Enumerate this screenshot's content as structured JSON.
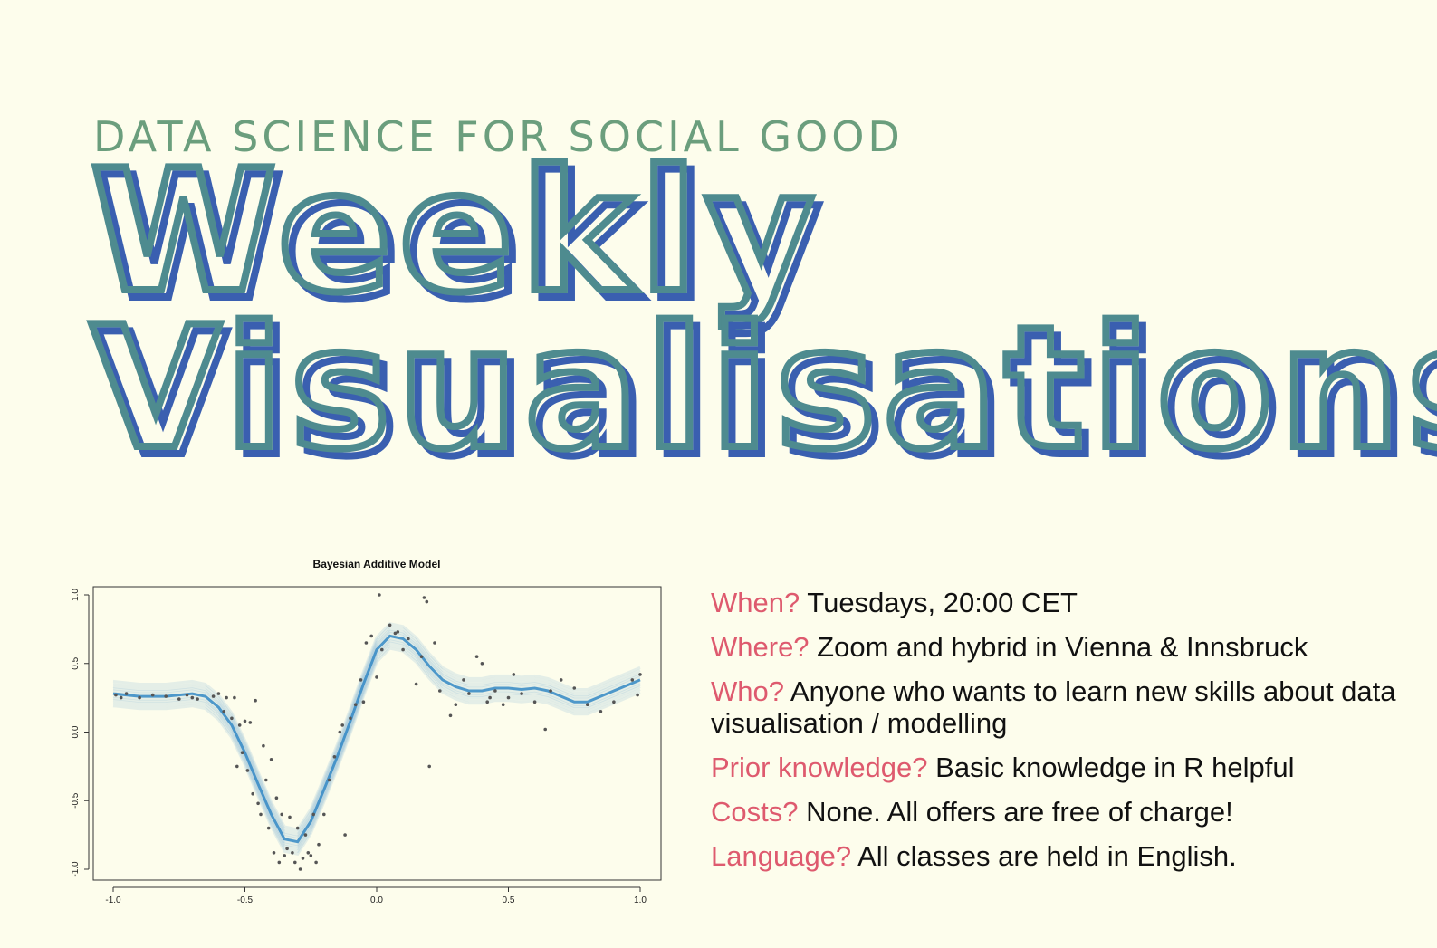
{
  "header": {
    "kicker": "DATA SCIENCE FOR SOCIAL GOOD",
    "title_line1": "Weekly",
    "title_line2": "Visualisations"
  },
  "colors": {
    "background": "#fdfdec",
    "kicker": "#6b9e7d",
    "title_outline_teal": "#4e8b8f",
    "title_outline_blue": "#3a5fb0",
    "question": "#de5a6e",
    "answer": "#111111",
    "curve": "#2f86c4"
  },
  "info": [
    {
      "question": "When?",
      "answer": "Tuesdays, 20:00 CET"
    },
    {
      "question": "Where?",
      "answer": "Zoom and hybrid in Vienna & Innsbruck"
    },
    {
      "question": "Who?",
      "answer": "Anyone who wants to learn new skills about data visualisation / modelling"
    },
    {
      "question": "Prior knowledge?",
      "answer": "Basic knowledge in R helpful"
    },
    {
      "question": "Costs?",
      "answer": "None. All offers are free of charge!"
    },
    {
      "question": "Language?",
      "answer": "All classes are held in English."
    }
  ],
  "chart_data": {
    "type": "scatter",
    "title": "Bayesian Additive Model",
    "xlabel": "",
    "ylabel": "",
    "xlim": [
      -1.0,
      1.0
    ],
    "ylim": [
      -1.0,
      1.0
    ],
    "xticks": [
      "-1.0",
      "-0.5",
      "0.0",
      "0.5",
      "1.0"
    ],
    "yticks": [
      "-1.0",
      "-0.5",
      "0.0",
      "0.5",
      "1.0"
    ],
    "grid": false,
    "series": [
      {
        "type": "line",
        "x": [
          -1.0,
          -0.9,
          -0.8,
          -0.7,
          -0.65,
          -0.6,
          -0.55,
          -0.5,
          -0.45,
          -0.4,
          -0.35,
          -0.3,
          -0.25,
          -0.2,
          -0.15,
          -0.1,
          -0.05,
          0.0,
          0.05,
          0.1,
          0.15,
          0.2,
          0.25,
          0.3,
          0.35,
          0.4,
          0.45,
          0.5,
          0.55,
          0.6,
          0.65,
          0.7,
          0.75,
          0.8,
          0.85,
          0.9,
          0.95,
          1.0
        ],
        "y": [
          0.28,
          0.26,
          0.26,
          0.28,
          0.26,
          0.18,
          0.05,
          -0.15,
          -0.38,
          -0.6,
          -0.78,
          -0.8,
          -0.65,
          -0.42,
          -0.18,
          0.08,
          0.35,
          0.6,
          0.7,
          0.68,
          0.6,
          0.48,
          0.38,
          0.33,
          0.3,
          0.3,
          0.32,
          0.32,
          0.31,
          0.32,
          0.3,
          0.26,
          0.22,
          0.22,
          0.26,
          0.3,
          0.34,
          0.38
        ]
      },
      {
        "type": "scatter",
        "x": [
          -0.99,
          -0.97,
          -0.95,
          -0.9,
          -0.85,
          -0.8,
          -0.75,
          -0.72,
          -0.7,
          -0.68,
          -0.62,
          -0.6,
          -0.58,
          -0.57,
          -0.55,
          -0.54,
          -0.53,
          -0.52,
          -0.51,
          -0.5,
          -0.49,
          -0.48,
          -0.47,
          -0.46,
          -0.45,
          -0.44,
          -0.43,
          -0.42,
          -0.41,
          -0.4,
          -0.39,
          -0.38,
          -0.37,
          -0.36,
          -0.35,
          -0.34,
          -0.33,
          -0.32,
          -0.31,
          -0.3,
          -0.29,
          -0.28,
          -0.27,
          -0.26,
          -0.25,
          -0.24,
          -0.23,
          -0.22,
          -0.2,
          -0.18,
          -0.16,
          -0.14,
          -0.13,
          -0.12,
          -0.1,
          -0.08,
          -0.06,
          -0.05,
          -0.04,
          -0.02,
          0.0,
          0.01,
          0.02,
          0.05,
          0.07,
          0.08,
          0.1,
          0.12,
          0.15,
          0.17,
          0.18,
          0.19,
          0.2,
          0.22,
          0.24,
          0.28,
          0.3,
          0.33,
          0.35,
          0.38,
          0.4,
          0.42,
          0.43,
          0.45,
          0.48,
          0.5,
          0.52,
          0.55,
          0.6,
          0.64,
          0.66,
          0.7,
          0.75,
          0.8,
          0.85,
          0.9,
          0.97,
          0.99,
          1.0
        ],
        "y": [
          0.27,
          0.25,
          0.28,
          0.25,
          0.27,
          0.26,
          0.24,
          0.27,
          0.25,
          0.24,
          0.26,
          0.28,
          0.15,
          0.25,
          0.1,
          0.25,
          -0.25,
          0.05,
          -0.15,
          0.08,
          -0.28,
          0.07,
          -0.45,
          0.23,
          -0.52,
          -0.6,
          -0.1,
          -0.35,
          -0.7,
          -0.2,
          -0.88,
          -0.48,
          -0.95,
          -0.6,
          -0.9,
          -0.85,
          -0.62,
          -0.88,
          -0.95,
          -0.7,
          -1.0,
          -0.92,
          -0.75,
          -0.88,
          -0.9,
          -0.6,
          -0.95,
          -0.82,
          -0.6,
          -0.35,
          -0.18,
          0.0,
          0.05,
          -0.75,
          0.1,
          0.2,
          0.38,
          0.22,
          0.65,
          0.7,
          0.4,
          1.0,
          0.6,
          0.78,
          0.72,
          0.73,
          0.6,
          0.68,
          0.35,
          0.55,
          0.98,
          0.95,
          -0.25,
          0.65,
          0.3,
          0.12,
          0.2,
          0.38,
          0.28,
          0.55,
          0.5,
          0.22,
          0.25,
          0.3,
          0.2,
          0.25,
          0.42,
          0.28,
          0.22,
          0.02,
          0.3,
          0.38,
          0.32,
          0.2,
          0.15,
          0.22,
          0.38,
          0.27,
          0.42
        ]
      }
    ]
  }
}
